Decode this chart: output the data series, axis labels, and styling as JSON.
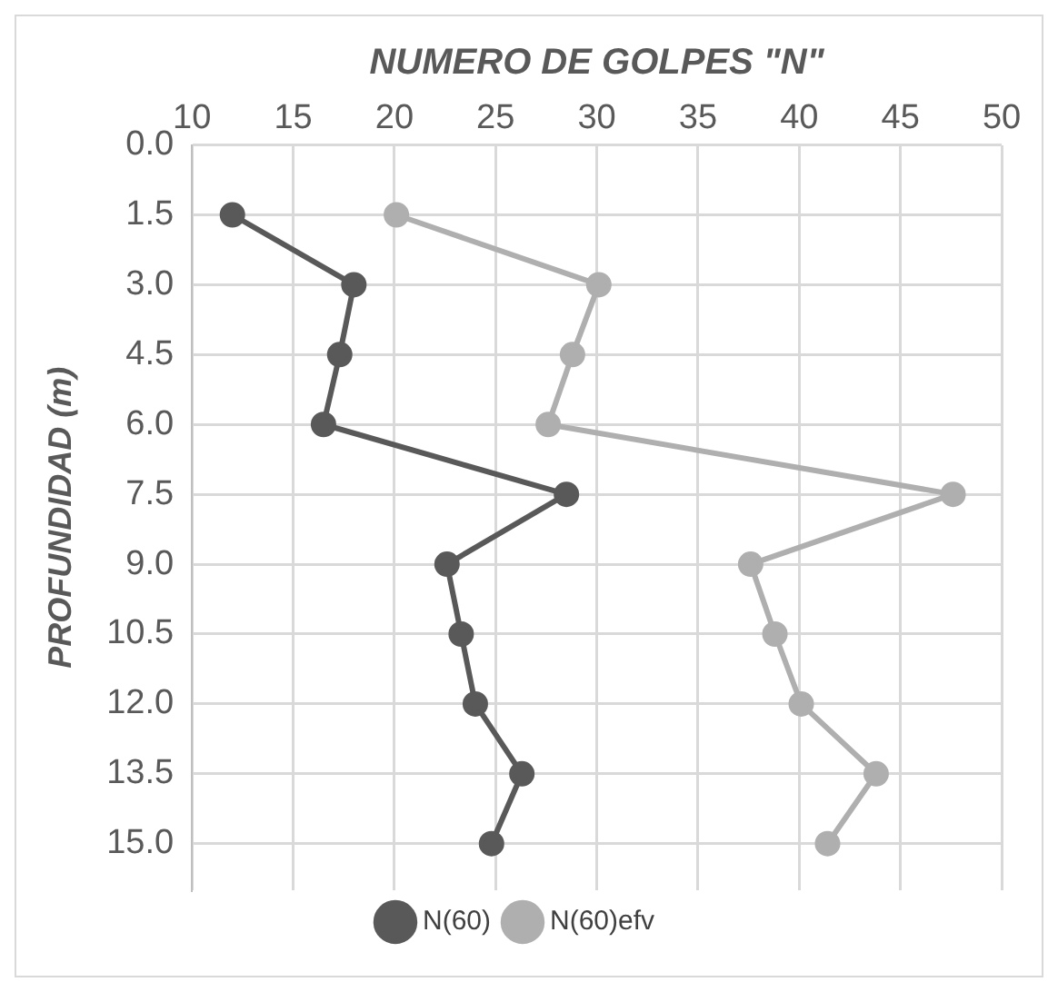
{
  "chart_data": {
    "type": "line",
    "xlabel": "NUMERO DE GOLPES \"N\"",
    "ylabel": "PROFUNDIDAD (m)",
    "series": [
      {
        "name": "N(60)",
        "color": "#595959",
        "x": [
          12.0,
          18.0,
          17.3,
          16.5,
          28.5,
          22.6,
          23.3,
          24.0,
          26.3,
          24.8
        ],
        "values": [
          1.5,
          3.0,
          4.5,
          6.0,
          7.5,
          9.0,
          10.5,
          12.0,
          13.5,
          15.0
        ]
      },
      {
        "name": "N(60)efv",
        "color": "#afafaf",
        "x": [
          20.1,
          30.1,
          28.8,
          27.6,
          47.6,
          37.6,
          38.8,
          40.1,
          43.8,
          41.4
        ],
        "values": [
          1.5,
          3.0,
          4.5,
          6.0,
          7.5,
          9.0,
          10.5,
          12.0,
          13.5,
          15.0
        ]
      }
    ],
    "xlim": [
      10,
      50
    ],
    "xticks": [
      10,
      15,
      20,
      25,
      30,
      35,
      40,
      45,
      50
    ],
    "ylim": [
      16,
      0
    ],
    "yticks": [
      {
        "value": 0,
        "label": "0.0"
      },
      {
        "value": 1.5,
        "label": "1.5"
      },
      {
        "value": 3,
        "label": "3.0"
      },
      {
        "value": 4.5,
        "label": "4.5"
      },
      {
        "value": 6,
        "label": "6.0"
      },
      {
        "value": 7.5,
        "label": "7.5"
      },
      {
        "value": 9,
        "label": "9.0"
      },
      {
        "value": 10.5,
        "label": "10.5"
      },
      {
        "value": 12,
        "label": "12.0"
      },
      {
        "value": 13.5,
        "label": "13.5"
      },
      {
        "value": 15,
        "label": "15.0"
      }
    ],
    "grid": true,
    "legend": "bottom",
    "marker": "circle",
    "line_style": "solid"
  }
}
